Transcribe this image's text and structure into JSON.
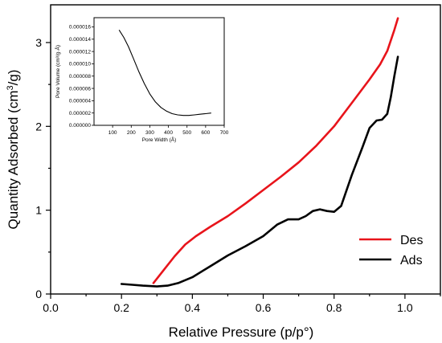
{
  "chart_data": [
    {
      "type": "line",
      "title": "",
      "xlabel": "Relative Pressure (p/p°)",
      "ylabel_main": "Quantity Adsorbed (cm",
      "ylabel_sup": "3",
      "ylabel_tail": "/g)",
      "xlim": [
        0.0,
        1.1
      ],
      "ylim": [
        0,
        3.45
      ],
      "xticks": [
        0.0,
        0.2,
        0.4,
        0.6,
        0.8,
        1.0
      ],
      "xtick_labels": [
        "0.0",
        "0.2",
        "0.4",
        "0.6",
        "0.8",
        "1.0"
      ],
      "yticks": [
        0,
        1,
        2,
        3
      ],
      "ytick_labels": [
        "0",
        "1",
        "2",
        "3"
      ],
      "legend_position": "bottom-right",
      "grid": false,
      "series": [
        {
          "name": "Des",
          "color": "#e8141b",
          "x": [
            0.29,
            0.32,
            0.35,
            0.38,
            0.41,
            0.45,
            0.5,
            0.55,
            0.6,
            0.65,
            0.7,
            0.75,
            0.8,
            0.85,
            0.9,
            0.93,
            0.95,
            0.97,
            0.98
          ],
          "y": [
            0.13,
            0.29,
            0.45,
            0.59,
            0.69,
            0.8,
            0.93,
            1.08,
            1.24,
            1.4,
            1.57,
            1.77,
            2.0,
            2.28,
            2.56,
            2.74,
            2.9,
            3.15,
            3.29
          ]
        },
        {
          "name": "Ads",
          "color": "#000000",
          "x": [
            0.2,
            0.23,
            0.26,
            0.3,
            0.33,
            0.36,
            0.4,
            0.45,
            0.5,
            0.55,
            0.6,
            0.64,
            0.67,
            0.7,
            0.72,
            0.74,
            0.76,
            0.78,
            0.8,
            0.82,
            0.85,
            0.88,
            0.9,
            0.92,
            0.935,
            0.95,
            0.96,
            0.97,
            0.98
          ],
          "y": [
            0.12,
            0.11,
            0.1,
            0.09,
            0.1,
            0.13,
            0.2,
            0.33,
            0.46,
            0.57,
            0.69,
            0.83,
            0.89,
            0.89,
            0.93,
            0.99,
            1.01,
            0.99,
            0.98,
            1.05,
            1.42,
            1.75,
            1.98,
            2.07,
            2.08,
            2.15,
            2.35,
            2.6,
            2.83
          ]
        }
      ]
    },
    {
      "type": "line",
      "title": "",
      "xlabel": "Pore Width (Å)",
      "ylabel": "Pore Volume (cm³/g·Å)",
      "xlim": [
        0,
        700
      ],
      "ylim": [
        0.0,
        1.75e-05
      ],
      "xticks": [
        100,
        200,
        300,
        400,
        500,
        600,
        700
      ],
      "xtick_labels": [
        "100",
        "200",
        "300",
        "400",
        "500",
        "600",
        "700"
      ],
      "yticks": [
        0.0,
        2e-06,
        4e-06,
        6e-06,
        8e-06,
        1e-05,
        1.2e-05,
        1.4e-05,
        1.6e-05
      ],
      "ytick_labels": [
        "0.000000",
        "0.000002",
        "0.000004",
        "0.000006",
        "0.000008",
        "0.000010",
        "0.000012",
        "0.000014",
        "0.000016"
      ],
      "series": [
        {
          "x": [
            135,
            160,
            185,
            210,
            240,
            270,
            300,
            330,
            360,
            390,
            420,
            450,
            480,
            510,
            540,
            570,
            600,
            630
          ],
          "y": [
            1.55e-05,
            1.43e-05,
            1.28e-05,
            1.1e-05,
            8.8e-06,
            6.8e-06,
            5.1e-06,
            3.8e-06,
            2.9e-06,
            2.3e-06,
            1.9e-06,
            1.7e-06,
            1.6e-06,
            1.6e-06,
            1.7e-06,
            1.8e-06,
            1.9e-06,
            2e-06
          ]
        }
      ]
    }
  ]
}
